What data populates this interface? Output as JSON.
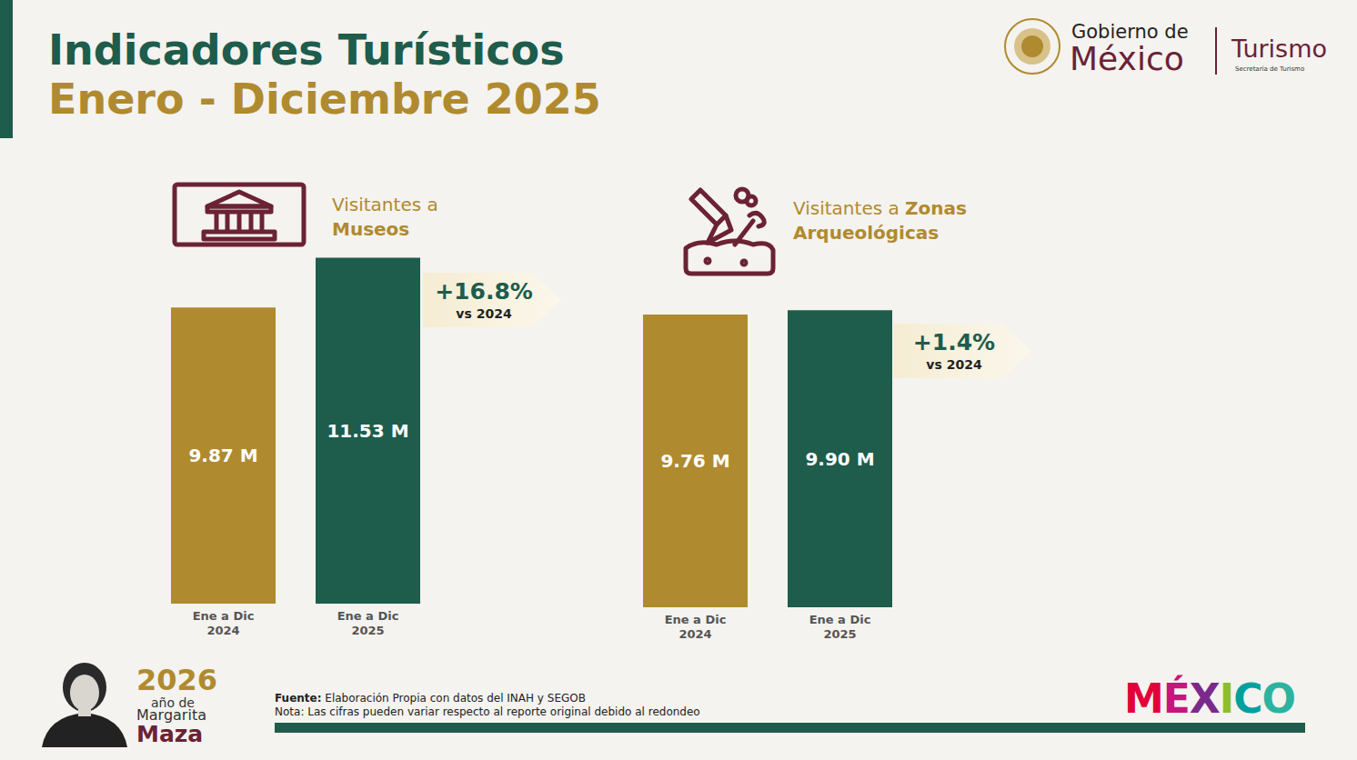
{
  "header": {
    "title": "Indicadores Turísticos",
    "subtitle": "Enero - Diciembre 2025",
    "gov_line1": "Gobierno de",
    "gov_line2": "México",
    "dept": "Turismo",
    "dept_sub": "Secretaría de Turismo"
  },
  "chart_data": [
    {
      "type": "bar",
      "title": {
        "lead": "Visitantes a",
        "emphasis": "Museos"
      },
      "categories": [
        "Ene a Dic 2024",
        "Ene a Dic 2025"
      ],
      "values": [
        9.87,
        11.53
      ],
      "value_labels": [
        "9.87 M",
        "11.53 M"
      ],
      "colors": [
        "#b08a2e",
        "#1e5c4c"
      ],
      "ylim": [
        0,
        12
      ],
      "tick_labels": "x",
      "data_labels": true,
      "annotation": {
        "text": "+16.8%",
        "note": "vs 2024"
      }
    },
    {
      "type": "bar",
      "title": {
        "lead": "Visitantes a",
        "emphasis": "Zonas Arqueológicas"
      },
      "categories": [
        "Ene a Dic 2024",
        "Ene a Dic 2025"
      ],
      "values": [
        9.76,
        9.9
      ],
      "value_labels": [
        "9.76 M",
        "9.90 M"
      ],
      "colors": [
        "#b08a2e",
        "#1e5c4c"
      ],
      "ylim": [
        0,
        12
      ],
      "tick_labels": "x",
      "data_labels": true,
      "annotation": {
        "text": "+1.4%",
        "note": "vs 2024"
      }
    }
  ],
  "footer": {
    "source_label": "Fuente:",
    "source": "Elaboración Propia con datos del INAH y SEGOB",
    "note": "Nota: Las cifras pueden variar respecto al reporte original debido al redondeo",
    "badge": {
      "year": "2026",
      "line1": "año de",
      "line2": "Margarita",
      "line3": "Maza"
    },
    "brand": "MÉXICO"
  }
}
